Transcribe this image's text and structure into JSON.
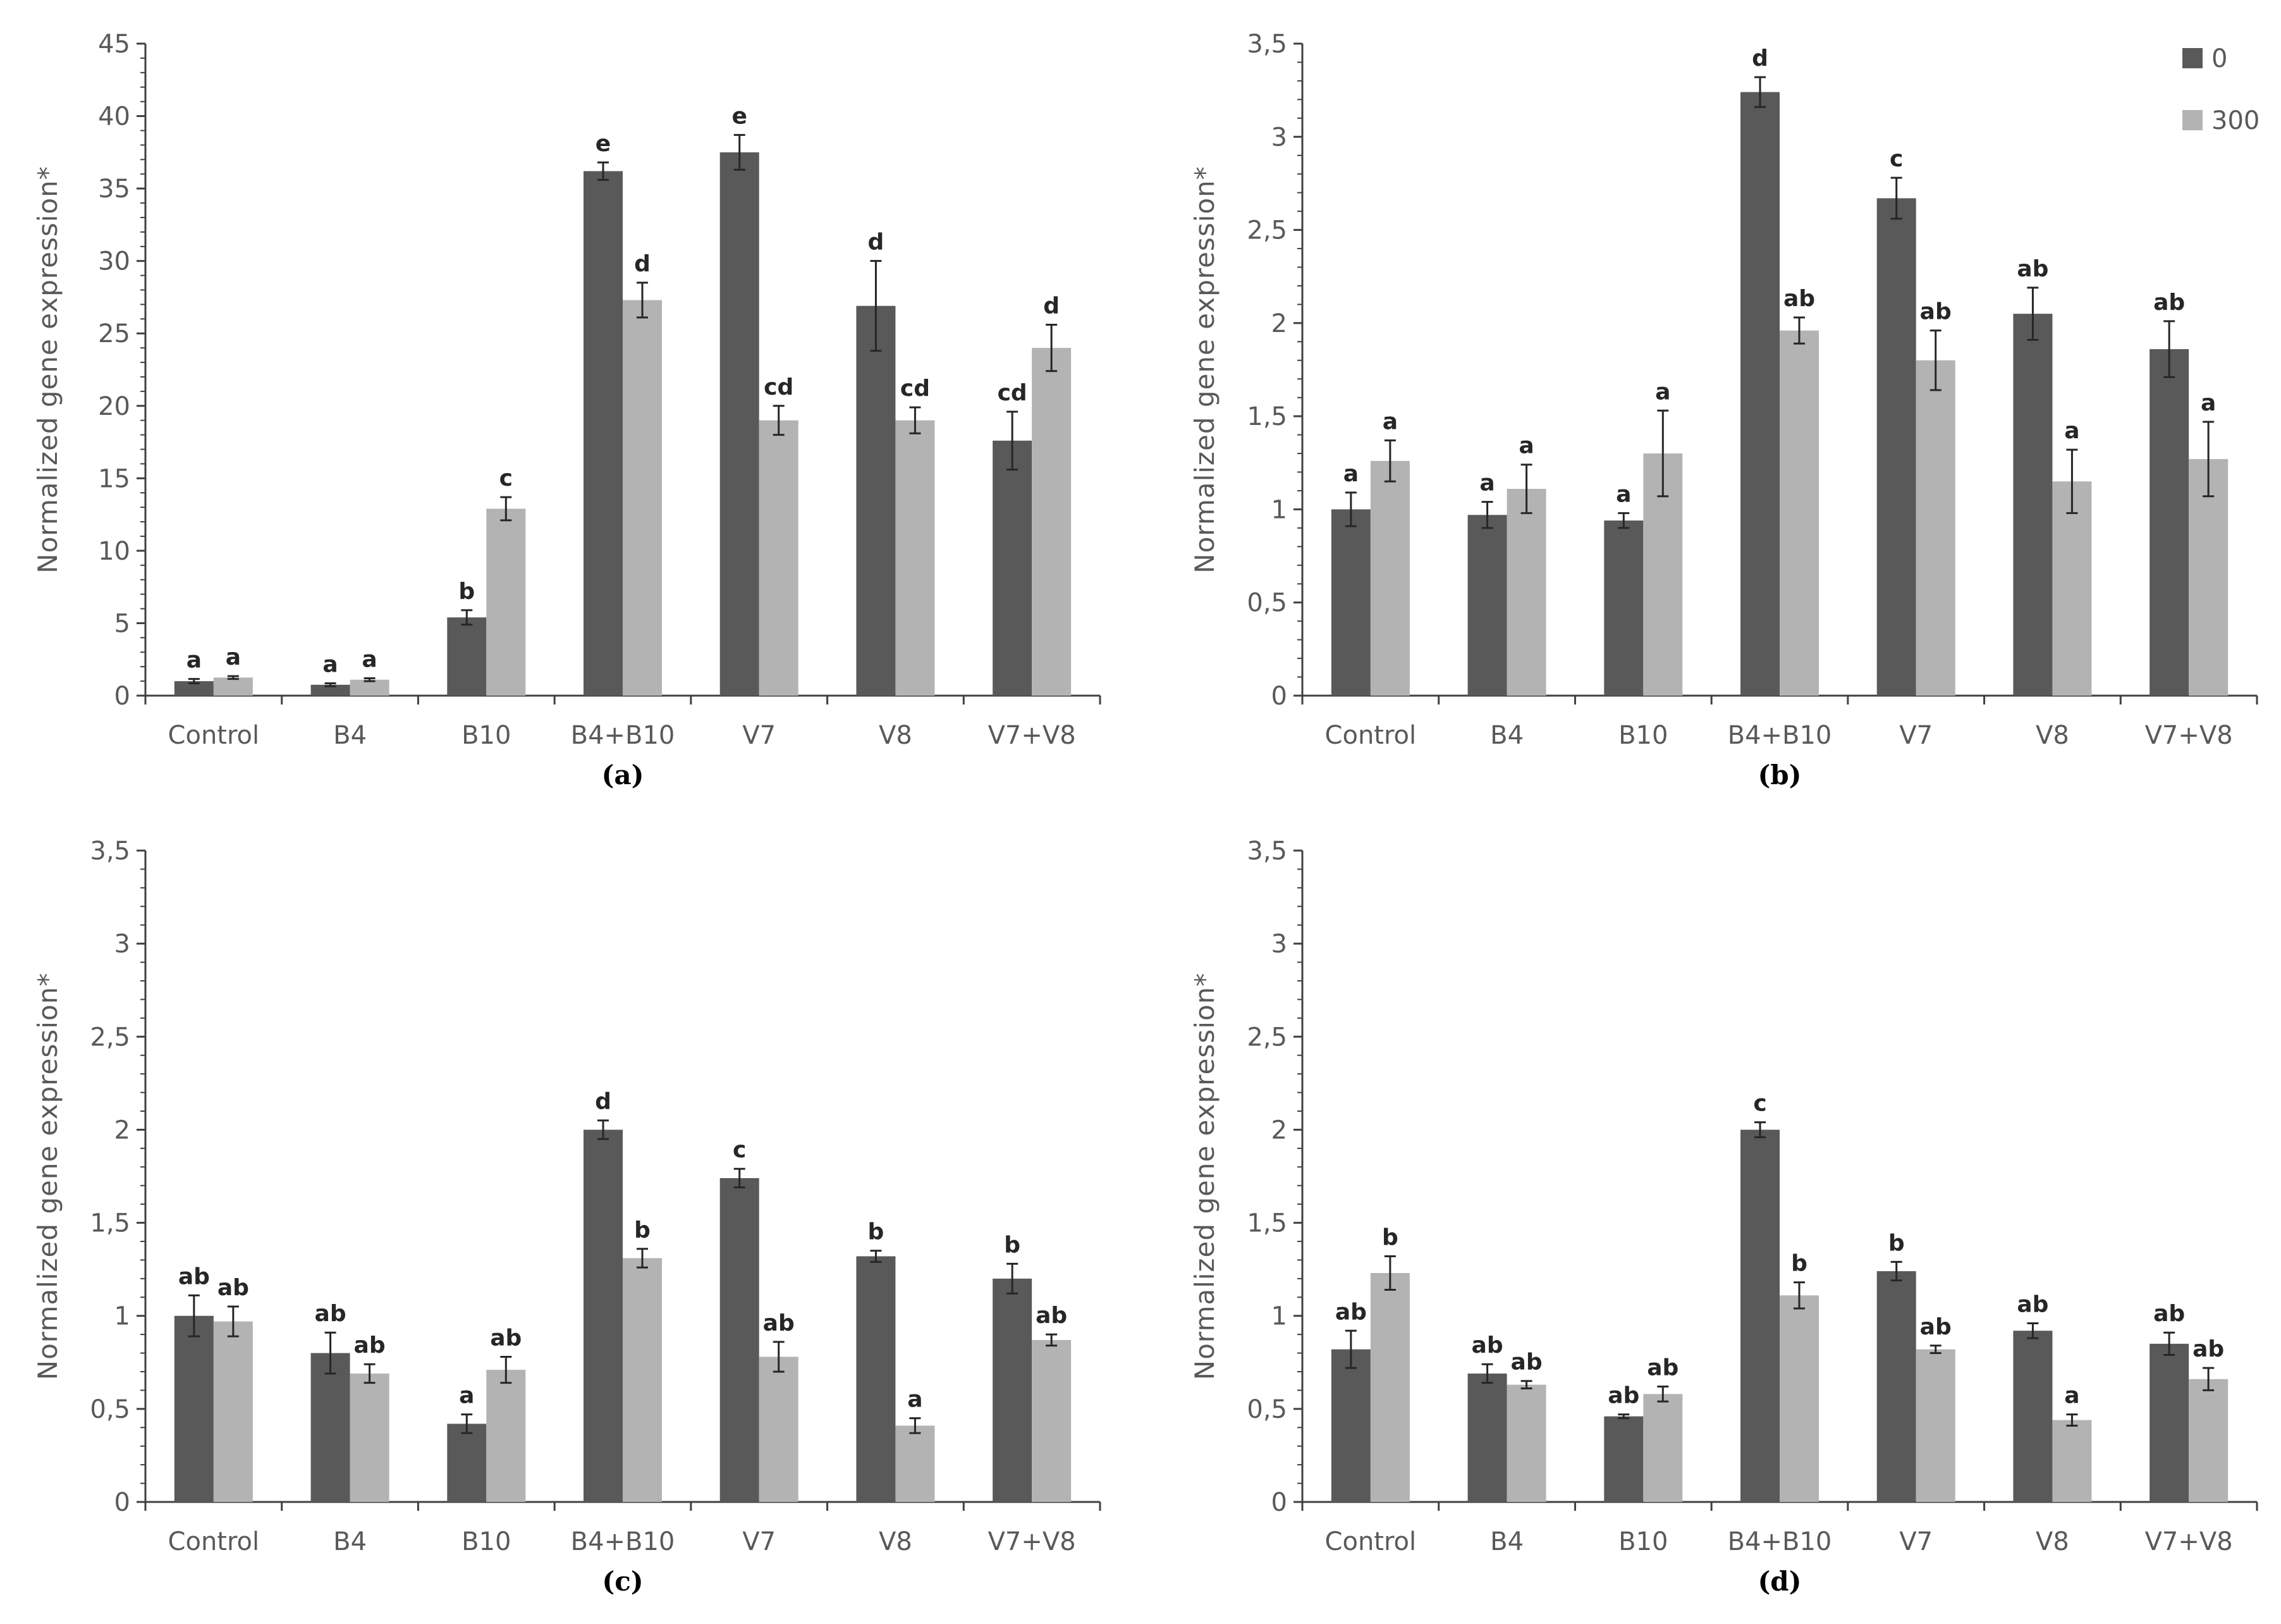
{
  "chart_data": [
    {
      "type": "bar",
      "panel": "(a)",
      "title": "",
      "xlabel": "",
      "ylabel": "Normalized gene expression*",
      "ylim": [
        0,
        45
      ],
      "yticks": [
        "0",
        "5",
        "10",
        "15",
        "20",
        "25",
        "30",
        "35",
        "40",
        "45"
      ],
      "categories": [
        "Control",
        "B4",
        "B10",
        "B4+B10",
        "V7",
        "V8",
        "V7+V8"
      ],
      "series": [
        {
          "name": "0",
          "color": "#595959",
          "values": [
            1.0,
            0.75,
            5.4,
            36.2,
            37.5,
            26.9,
            17.6
          ],
          "errors": [
            0.15,
            0.1,
            0.5,
            0.6,
            1.2,
            3.1,
            2.0
          ],
          "labels": [
            "a",
            "a",
            "b",
            "e",
            "e",
            "d",
            "cd"
          ]
        },
        {
          "name": "300",
          "color": "#b3b3b3",
          "values": [
            1.25,
            1.1,
            12.9,
            27.3,
            19.0,
            19.0,
            24.0
          ],
          "errors": [
            0.1,
            0.1,
            0.8,
            1.2,
            1.0,
            0.9,
            1.6
          ],
          "labels": [
            "a",
            "a",
            "c",
            "d",
            "cd",
            "cd",
            "d"
          ]
        }
      ]
    },
    {
      "type": "bar",
      "panel": "(b)",
      "title": "",
      "xlabel": "",
      "ylabel": "Normalized gene expression*",
      "ylim": [
        0,
        3.5
      ],
      "yticks": [
        "0",
        "0,5",
        "1",
        "1,5",
        "2",
        "2,5",
        "3",
        "3,5"
      ],
      "legend": {
        "position": "top-right",
        "entries": [
          "0",
          "300"
        ]
      },
      "categories": [
        "Control",
        "B4",
        "B10",
        "B4+B10",
        "V7",
        "V8",
        "V7+V8"
      ],
      "series": [
        {
          "name": "0",
          "color": "#595959",
          "values": [
            1.0,
            0.97,
            0.94,
            3.24,
            2.67,
            2.05,
            1.86
          ],
          "errors": [
            0.09,
            0.07,
            0.04,
            0.08,
            0.11,
            0.14,
            0.15
          ],
          "labels": [
            "a",
            "a",
            "a",
            "d",
            "c",
            "ab",
            "ab"
          ]
        },
        {
          "name": "300",
          "color": "#b3b3b3",
          "values": [
            1.26,
            1.11,
            1.3,
            1.96,
            1.8,
            1.15,
            1.27
          ],
          "errors": [
            0.11,
            0.13,
            0.23,
            0.07,
            0.16,
            0.17,
            0.2
          ],
          "labels": [
            "a",
            "a",
            "a",
            "ab",
            "ab",
            "a",
            "a"
          ]
        }
      ]
    },
    {
      "type": "bar",
      "panel": "(c)",
      "title": "",
      "xlabel": "",
      "ylabel": "Normalized gene expression*",
      "ylim": [
        0,
        3.5
      ],
      "yticks": [
        "0",
        "0,5",
        "1",
        "1,5",
        "2",
        "2,5",
        "3",
        "3,5"
      ],
      "categories": [
        "Control",
        "B4",
        "B10",
        "B4+B10",
        "V7",
        "V8",
        "V7+V8"
      ],
      "series": [
        {
          "name": "0",
          "color": "#595959",
          "values": [
            1.0,
            0.8,
            0.42,
            2.0,
            1.74,
            1.32,
            1.2
          ],
          "errors": [
            0.11,
            0.11,
            0.05,
            0.05,
            0.05,
            0.03,
            0.08
          ],
          "labels": [
            "ab",
            "ab",
            "a",
            "d",
            "c",
            "b",
            "b"
          ]
        },
        {
          "name": "300",
          "color": "#b3b3b3",
          "values": [
            0.97,
            0.69,
            0.71,
            1.31,
            0.78,
            0.41,
            0.87
          ],
          "errors": [
            0.08,
            0.05,
            0.07,
            0.05,
            0.08,
            0.04,
            0.03
          ],
          "labels": [
            "ab",
            "ab",
            "ab",
            "b",
            "ab",
            "a",
            "ab"
          ]
        }
      ]
    },
    {
      "type": "bar",
      "panel": "(d)",
      "title": "",
      "xlabel": "",
      "ylabel": "Normalized gene expression*",
      "ylim": [
        0,
        3.5
      ],
      "yticks": [
        "0",
        "0,5",
        "1",
        "1,5",
        "2",
        "2,5",
        "3",
        "3,5"
      ],
      "categories": [
        "Control",
        "B4",
        "B10",
        "B4+B10",
        "V7",
        "V8",
        "V7+V8"
      ],
      "series": [
        {
          "name": "0",
          "color": "#595959",
          "values": [
            0.82,
            0.69,
            0.46,
            2.0,
            1.24,
            0.92,
            0.85
          ],
          "errors": [
            0.1,
            0.05,
            0.01,
            0.04,
            0.05,
            0.04,
            0.06
          ],
          "labels": [
            "ab",
            "ab",
            "ab",
            "c",
            "b",
            "ab",
            "ab"
          ]
        },
        {
          "name": "300",
          "color": "#b3b3b3",
          "values": [
            1.23,
            0.63,
            0.58,
            1.11,
            0.82,
            0.44,
            0.66
          ],
          "errors": [
            0.09,
            0.02,
            0.04,
            0.07,
            0.02,
            0.03,
            0.06
          ],
          "labels": [
            "b",
            "ab",
            "ab",
            "b",
            "ab",
            "a",
            "ab"
          ]
        }
      ]
    }
  ]
}
